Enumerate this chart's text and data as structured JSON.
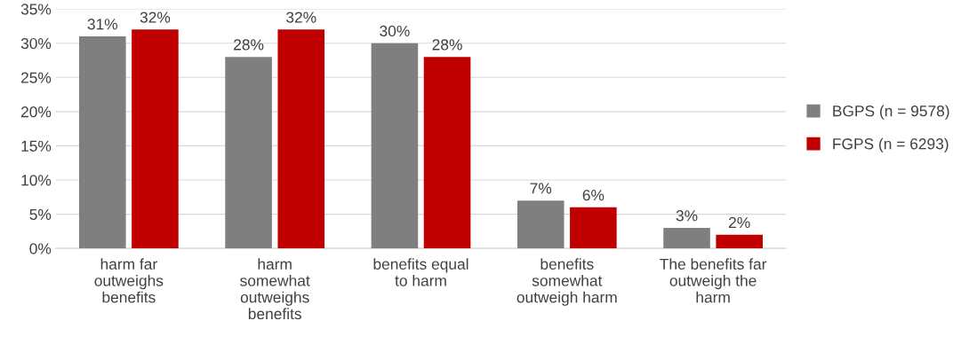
{
  "chart_data": {
    "type": "bar",
    "categories": [
      "harm far\noutweighs\nbenefits",
      "harm\nsomewhat\noutweighs\nbenefits",
      "benefits equal\nto harm",
      "benefits\nsomewhat\noutweigh harm",
      "The benefits far\noutweigh the\nharm"
    ],
    "series": [
      {
        "name": "BGPS (n = 9578)",
        "color": "#7f7f7f",
        "values": [
          31,
          28,
          30,
          7,
          3
        ],
        "value_labels": [
          "31%",
          "28%",
          "30%",
          "7%",
          "3%"
        ]
      },
      {
        "name": "FGPS (n = 6293)",
        "color": "#c00000",
        "values": [
          32,
          32,
          28,
          6,
          2
        ],
        "value_labels": [
          "32%",
          "32%",
          "28%",
          "6%",
          "2%"
        ]
      }
    ],
    "ylim": [
      0,
      35
    ],
    "yticks": [
      {
        "value": 0,
        "label": "0%"
      },
      {
        "value": 5,
        "label": "5%"
      },
      {
        "value": 10,
        "label": "10%"
      },
      {
        "value": 15,
        "label": "15%"
      },
      {
        "value": 20,
        "label": "20%"
      },
      {
        "value": 25,
        "label": "25%"
      },
      {
        "value": 30,
        "label": "30%"
      },
      {
        "value": 35,
        "label": "35%"
      }
    ],
    "grid": "y",
    "legend": "right"
  }
}
